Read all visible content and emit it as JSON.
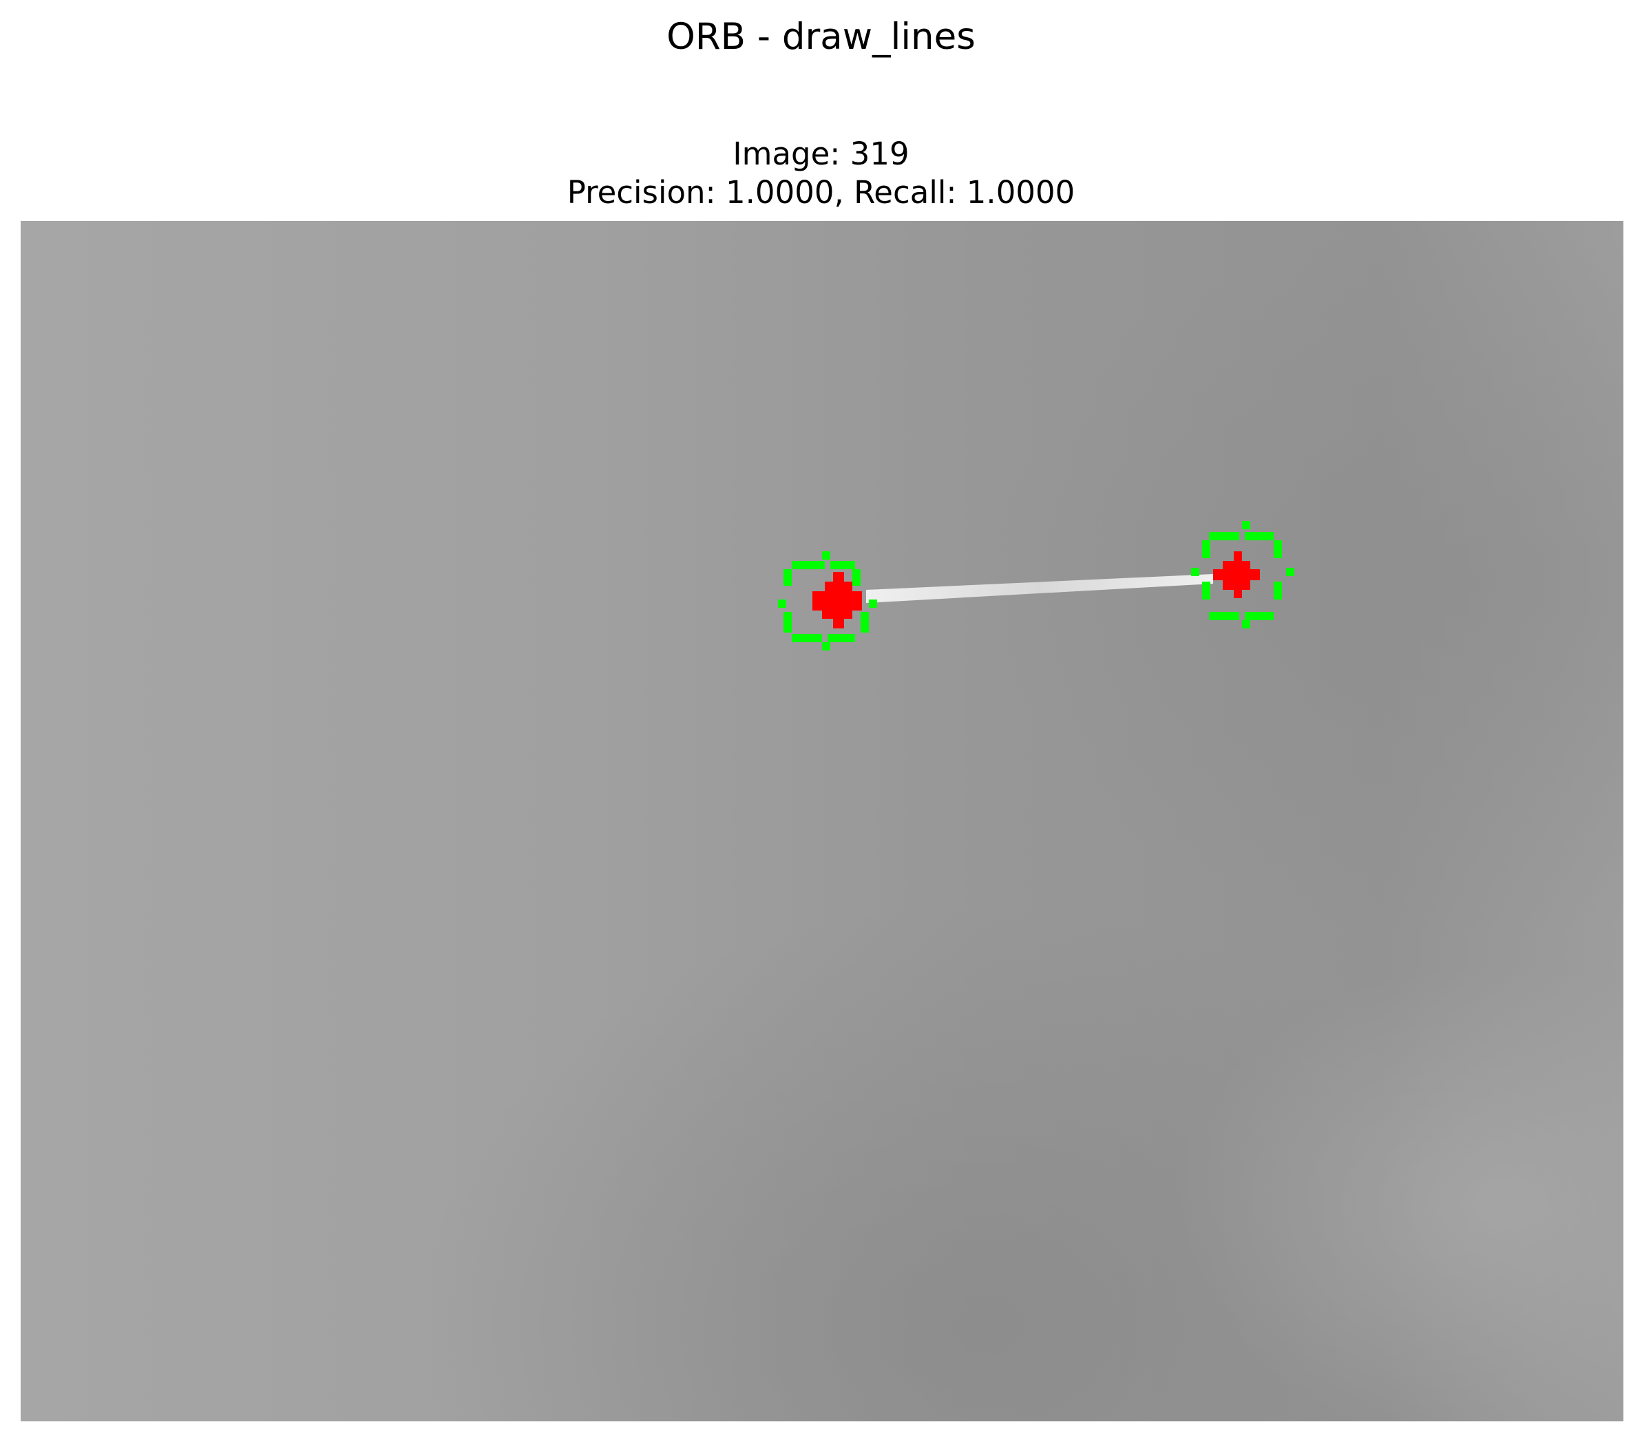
{
  "figure": {
    "suptitle": "ORB - draw_lines",
    "subtitle_line1": "Image: 319",
    "subtitle_line2": "Precision: 1.0000, Recall: 1.0000"
  },
  "image": {
    "description": "Grayscale image with two keypoints connected by a white line",
    "keypoint_count": 2,
    "match_count": 1,
    "colors": {
      "background_gray": "#9c9c9c",
      "keypoint_ring": "#00ff00",
      "keypoint_center": "#ff0000",
      "match_line": "#e2e2e2"
    }
  }
}
